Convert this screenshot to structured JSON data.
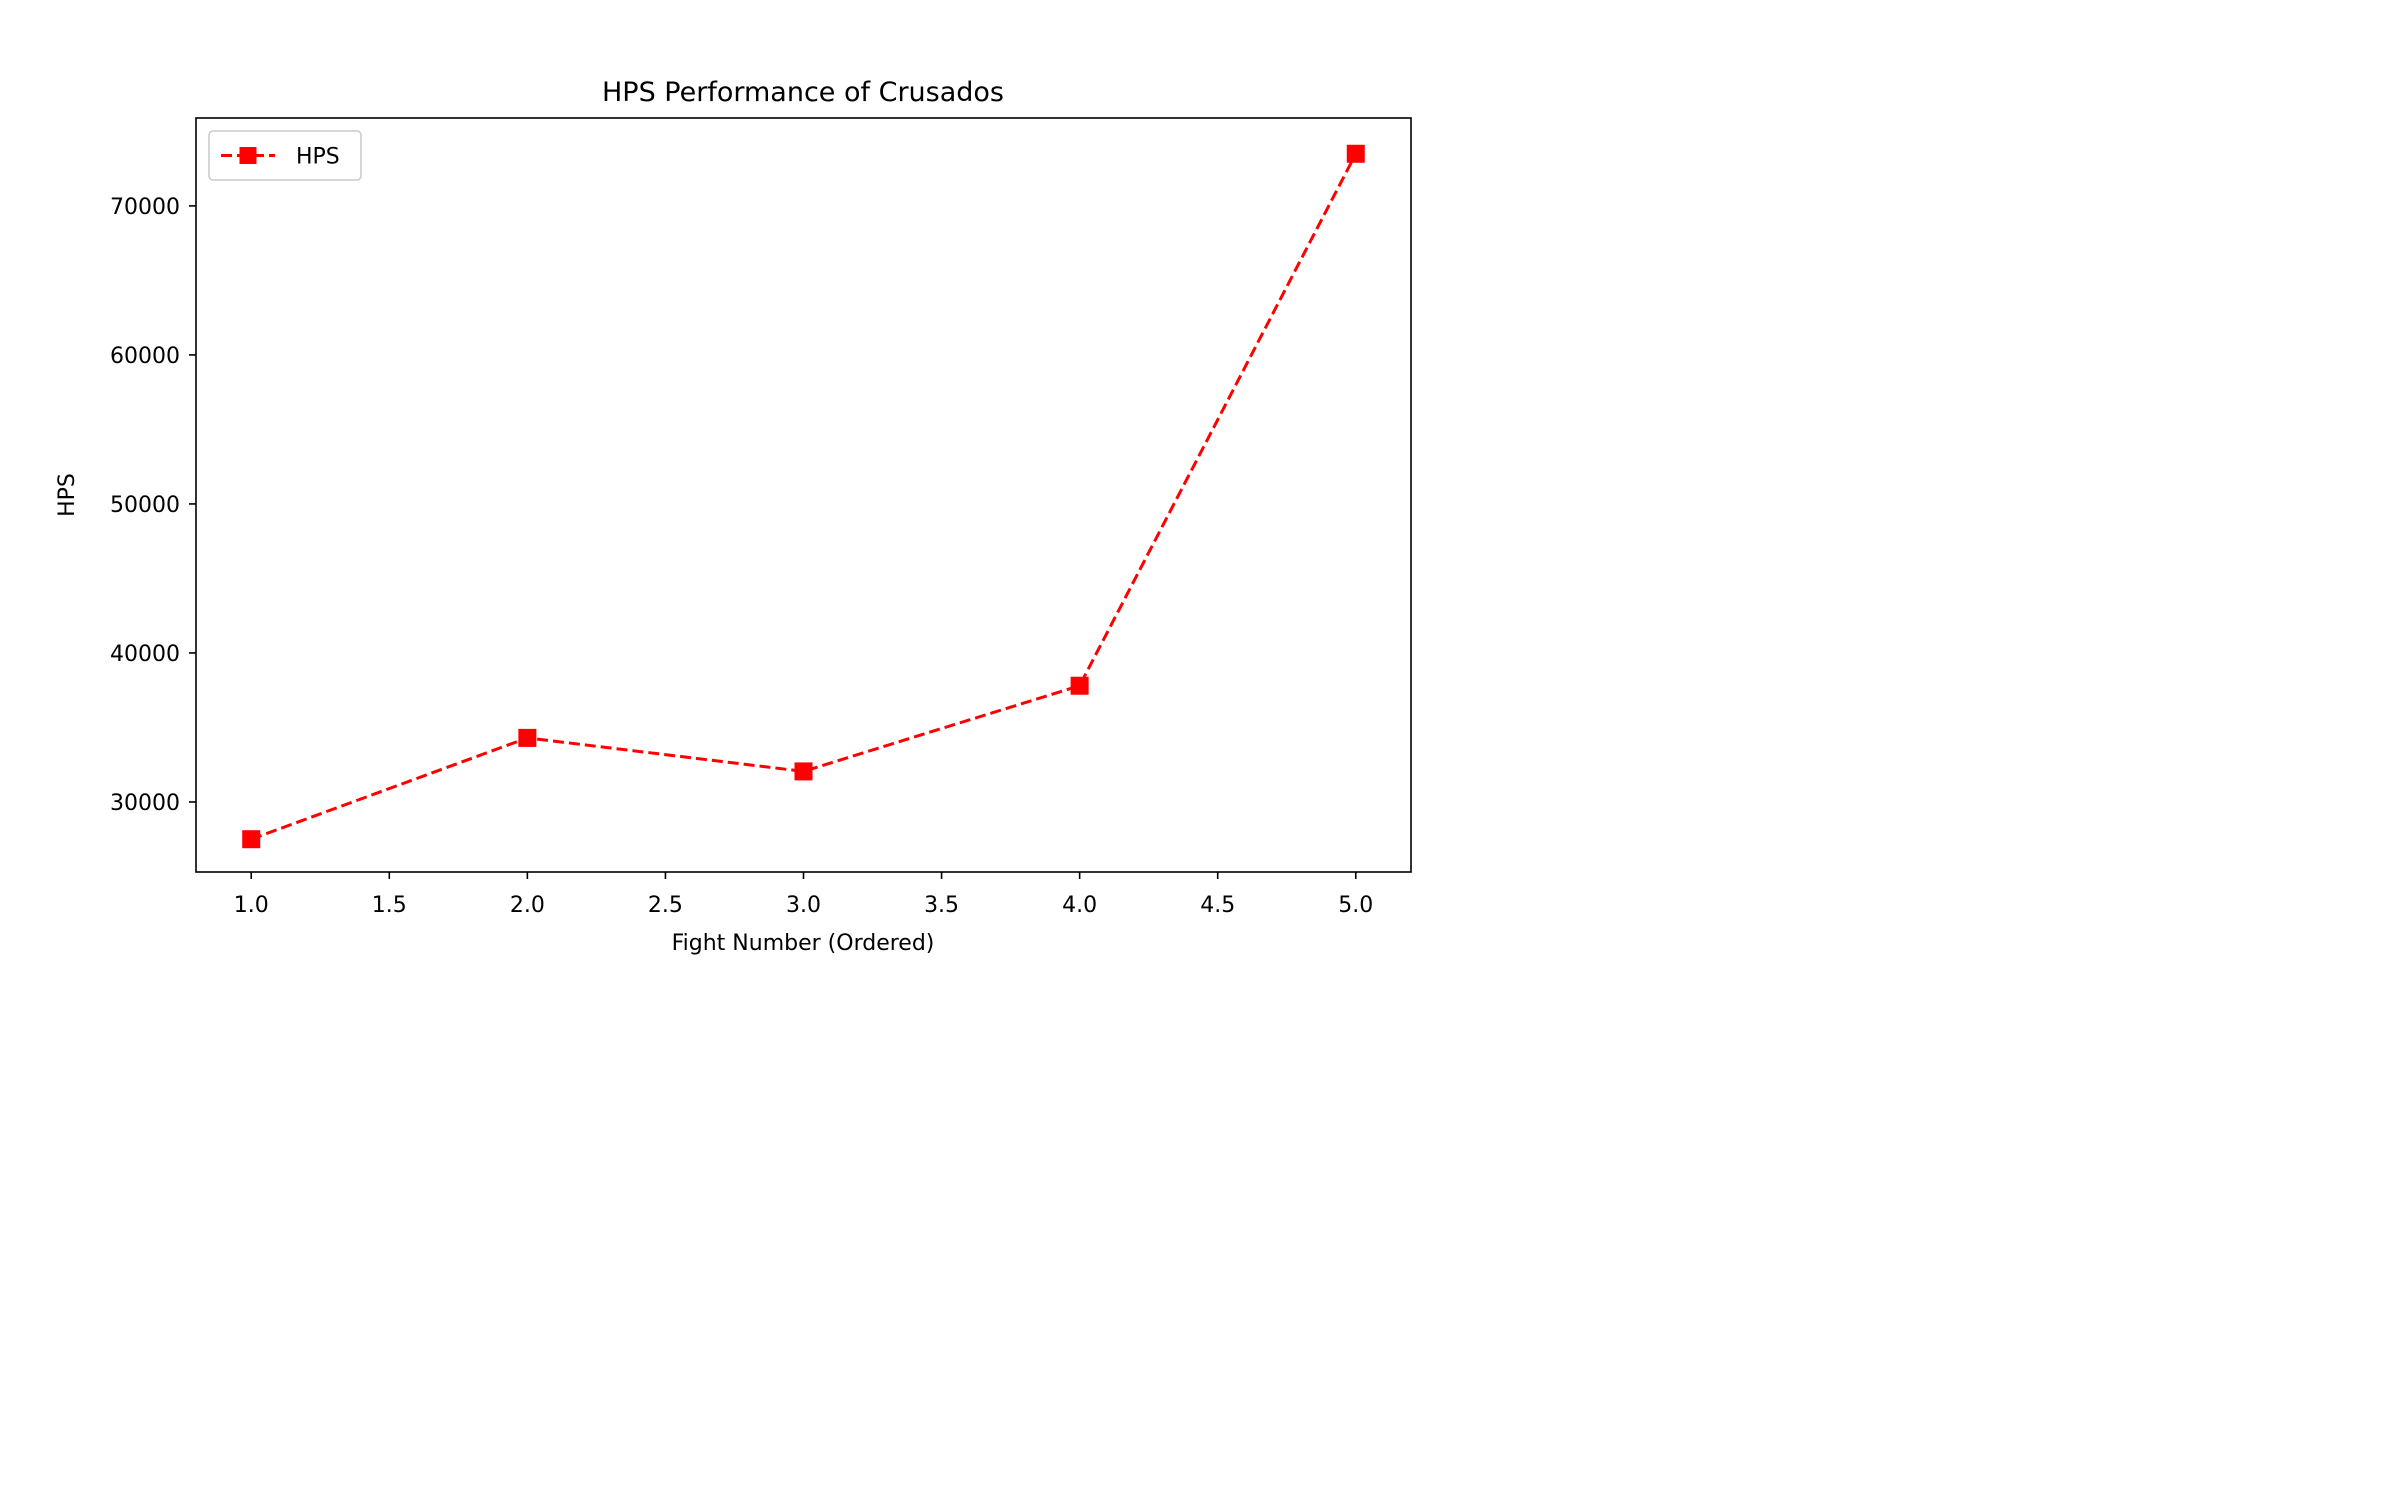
{
  "chart_data": {
    "type": "line",
    "title": "HPS Performance of Crusados",
    "xlabel": "Fight Number (Ordered)",
    "ylabel": "HPS",
    "xlim": [
      0.8,
      5.2
    ],
    "ylim": [
      25300,
      75900
    ],
    "xticks": [
      1.0,
      1.5,
      2.0,
      2.5,
      3.0,
      3.5,
      4.0,
      4.5,
      5.0
    ],
    "xtick_labels": [
      "1.0",
      "1.5",
      "2.0",
      "2.5",
      "3.0",
      "3.5",
      "4.0",
      "4.5",
      "5.0"
    ],
    "yticks": [
      30000,
      40000,
      50000,
      60000,
      70000
    ],
    "ytick_labels": [
      "30000",
      "40000",
      "50000",
      "60000",
      "70000"
    ],
    "grid": false,
    "legend": {
      "position": "upper-left",
      "entries": [
        "HPS"
      ]
    },
    "series": [
      {
        "name": "HPS",
        "color": "#ff0000",
        "line_style": "dashed",
        "marker": "square",
        "x": [
          1,
          2,
          3,
          4,
          5
        ],
        "y": [
          27500,
          34300,
          32050,
          37800,
          73500
        ]
      }
    ]
  }
}
